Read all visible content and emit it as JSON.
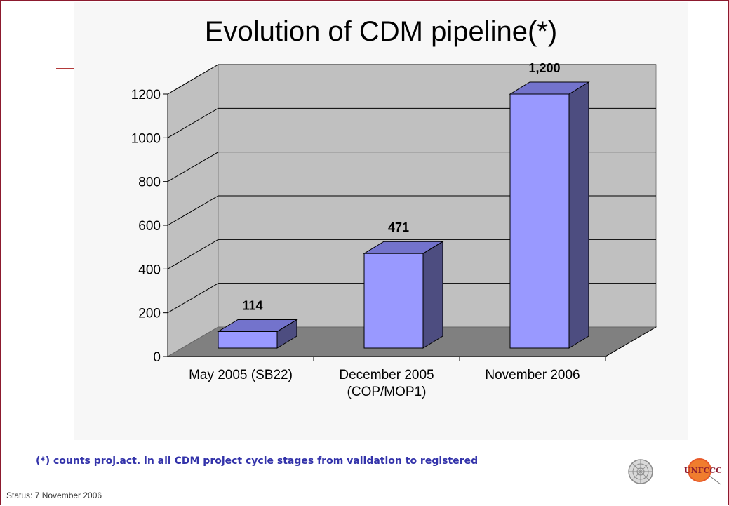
{
  "title": "Evolution of CDM pipeline(*)",
  "footnote": "(*) counts proj.act. in all CDM project cycle stages from validation to registered",
  "status": "Status: 7 November 2006",
  "logos": {
    "un_emblem_icon": "un-emblem",
    "unfccc_text": "UNFCCC"
  },
  "colors": {
    "bar_front": "#9999ff",
    "bar_side": "#4d4d80",
    "bar_top": "#7373cc",
    "wall": "#c0c0c0",
    "floor": "#808080",
    "border": "#8c1a2e"
  },
  "chart_data": {
    "type": "bar",
    "style": "3d",
    "categories": [
      "May 2005 (SB22)",
      "December 2005 (COP/MOP1)",
      "November 2006"
    ],
    "category_lines": [
      [
        "May 2005 (SB22)"
      ],
      [
        "December 2005",
        "(COP/MOP1)"
      ],
      [
        "November 2006"
      ]
    ],
    "values": [
      114,
      471,
      1200
    ],
    "value_labels": [
      "114",
      "471",
      "1,200"
    ],
    "ylim": [
      0,
      1200
    ],
    "yticks": [
      0,
      200,
      400,
      600,
      800,
      1000,
      1200
    ],
    "grid": true,
    "legend": "none"
  }
}
